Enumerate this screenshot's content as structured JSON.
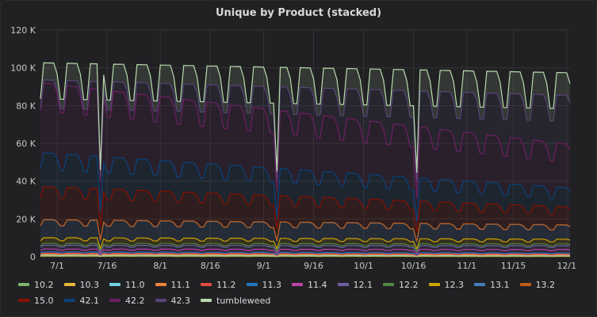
{
  "panel": {
    "title": "Unique by Product (stacked)"
  },
  "chart_data": {
    "type": "area",
    "stacked": true,
    "title": "Unique by Product (stacked)",
    "ylim": [
      0,
      120000
    ],
    "y_ticks": [
      0,
      20000,
      40000,
      60000,
      80000,
      100000,
      120000
    ],
    "y_tick_labels": [
      "0",
      "20 K",
      "40 K",
      "60 K",
      "80 K",
      "100 K",
      "120 K"
    ],
    "x_ticks": [
      "7/1",
      "7/16",
      "8/1",
      "8/16",
      "9/1",
      "9/16",
      "10/1",
      "10/16",
      "11/1",
      "11/15",
      "12/1"
    ],
    "x_tick_index": [
      5,
      20,
      36,
      51,
      67,
      82,
      97,
      112,
      128,
      142,
      158
    ],
    "days": 160,
    "grid": true,
    "legend": "bottom",
    "spike_days": [
      18,
      71,
      113
    ],
    "series": [
      {
        "name": "10.2",
        "color": "#7eb26d",
        "start": 300,
        "end": 200
      },
      {
        "name": "10.3",
        "color": "#eab839",
        "start": 300,
        "end": 200
      },
      {
        "name": "11.0",
        "color": "#6ed0e0",
        "start": 400,
        "end": 300
      },
      {
        "name": "11.1",
        "color": "#ef843c",
        "start": 400,
        "end": 300
      },
      {
        "name": "11.2",
        "color": "#e24d42",
        "start": 500,
        "end": 400
      },
      {
        "name": "11.3",
        "color": "#1f78c1",
        "start": 700,
        "end": 600
      },
      {
        "name": "11.4",
        "color": "#ba43a9",
        "start": 1500,
        "end": 1800
      },
      {
        "name": "12.1",
        "color": "#705da0",
        "start": 2000,
        "end": 2000
      },
      {
        "name": "12.2",
        "color": "#508642",
        "start": 1000,
        "end": 1000
      },
      {
        "name": "12.3",
        "color": "#cca300",
        "start": 3000,
        "end": 2500
      },
      {
        "name": "13.1",
        "color": "#447ebc",
        "start": 9500,
        "end": 7500
      },
      {
        "name": "13.2",
        "color": "#c15c17",
        "start": 100,
        "end": 100
      },
      {
        "name": "15.0",
        "color": "#890f02",
        "start": 17500,
        "end": 9500
      },
      {
        "name": "42.1",
        "color": "#0a437c",
        "start": 18000,
        "end": 10000
      },
      {
        "name": "42.2",
        "color": "#6d1f62",
        "start": 37000,
        "end": 23000
      },
      {
        "name": "42.3",
        "color": "#584477",
        "start": 1500,
        "end": 26000
      },
      {
        "name": "tumbleweed",
        "color": "#b7dbab",
        "start": 9000,
        "end": 12000
      }
    ]
  }
}
